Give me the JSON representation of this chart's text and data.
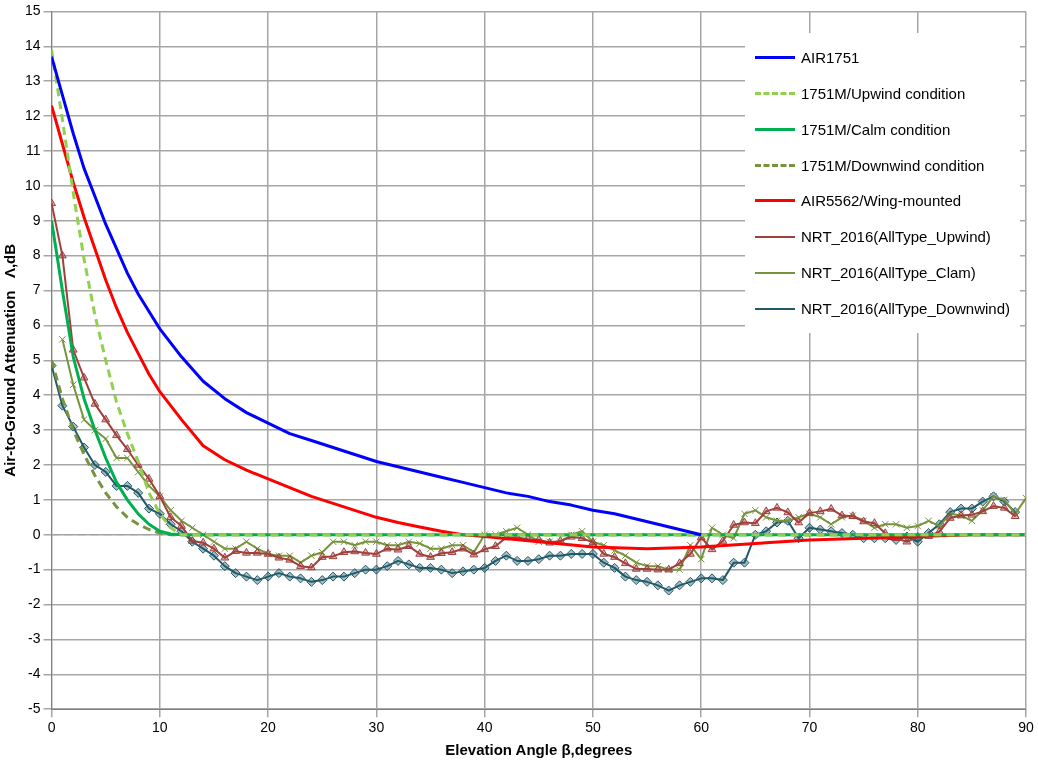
{
  "chart_data": {
    "type": "line",
    "xlabel": "Elevation Angle β,degrees",
    "ylabel": "Air-to-Ground Attenuation   Λ,dB",
    "x": [
      0,
      1,
      2,
      3,
      4,
      5,
      6,
      7,
      8,
      9,
      10,
      11,
      12,
      13,
      14,
      15,
      16,
      17,
      18,
      19,
      20,
      21,
      22,
      23,
      24,
      25,
      26,
      27,
      28,
      29,
      30,
      31,
      32,
      33,
      34,
      35,
      36,
      37,
      38,
      39,
      40,
      41,
      42,
      43,
      44,
      45,
      46,
      47,
      48,
      49,
      50,
      51,
      52,
      53,
      54,
      55,
      56,
      57,
      58,
      59,
      60,
      61,
      62,
      63,
      64,
      65,
      66,
      67,
      68,
      69,
      70,
      71,
      72,
      73,
      74,
      75,
      76,
      77,
      78,
      79,
      80,
      81,
      82,
      83,
      84,
      85,
      86,
      87,
      88,
      89,
      90
    ],
    "xlim": [
      0,
      90
    ],
    "xticks": [
      0,
      10,
      20,
      30,
      40,
      50,
      60,
      70,
      80,
      90
    ],
    "ylim": [
      -5,
      15
    ],
    "yticks": [
      -5,
      -4,
      -3,
      -2,
      -1,
      0,
      1,
      2,
      3,
      4,
      5,
      6,
      7,
      8,
      9,
      10,
      11,
      12,
      13,
      14,
      15
    ],
    "grid": true,
    "legend": "top right",
    "ref_lines": [
      {
        "axis": "y",
        "value": 0,
        "color": "#a0a0a0",
        "line_style": "dashed"
      }
    ],
    "series": [
      {
        "name": "AIR1751",
        "color": "#0000ff",
        "marker": "none",
        "line_style": "solid",
        "x": [
          0,
          1,
          2,
          3,
          4,
          5,
          6,
          7,
          8,
          9,
          10,
          12,
          14,
          16,
          18,
          20,
          22,
          24,
          26,
          28,
          30,
          32,
          34,
          36,
          38,
          40,
          42,
          44,
          46,
          48,
          50,
          52,
          54,
          56,
          58,
          60
        ],
        "values": [
          13.7,
          12.6,
          11.5,
          10.5,
          9.7,
          8.9,
          8.2,
          7.5,
          6.9,
          6.4,
          5.9,
          5.1,
          4.4,
          3.9,
          3.5,
          3.2,
          2.9,
          2.7,
          2.5,
          2.3,
          2.1,
          1.95,
          1.8,
          1.65,
          1.5,
          1.35,
          1.2,
          1.1,
          0.95,
          0.85,
          0.7,
          0.6,
          0.45,
          0.3,
          0.15,
          0
        ]
      },
      {
        "name": "1751M/Upwind condition",
        "color": "#92d050",
        "marker": "none",
        "line_style": "dashed",
        "x": [
          0,
          1,
          2,
          3,
          4,
          5,
          6,
          7,
          8,
          9,
          10,
          11,
          12,
          90
        ],
        "values": [
          13.9,
          11.9,
          9.8,
          7.9,
          6.3,
          5.0,
          3.8,
          2.9,
          2.1,
          1.2,
          0.6,
          0.2,
          0,
          0
        ]
      },
      {
        "name": "1751M/Calm condition",
        "color": "#00b050",
        "marker": "none",
        "line_style": "solid",
        "x": [
          0,
          1,
          2,
          3,
          4,
          5,
          6,
          7,
          8,
          9,
          10,
          11,
          12,
          90
        ],
        "values": [
          9.0,
          7.0,
          5.1,
          3.9,
          3.0,
          2.2,
          1.5,
          1.0,
          0.6,
          0.3,
          0.1,
          0.02,
          0,
          0
        ]
      },
      {
        "name": "1751M/Downwind condition",
        "color": "#77933c",
        "marker": "none",
        "line_style": "dashed",
        "x": [
          0,
          1,
          2,
          3,
          4,
          5,
          6,
          7,
          8,
          9,
          10,
          11,
          90
        ],
        "values": [
          5.0,
          3.9,
          3.0,
          2.3,
          1.7,
          1.2,
          0.8,
          0.5,
          0.3,
          0.15,
          0.05,
          0,
          0
        ]
      },
      {
        "name": "AIR5562/Wing-mounted",
        "color": "#ff0000",
        "marker": "none",
        "line_style": "solid",
        "x": [
          0,
          1,
          2,
          3,
          4,
          5,
          6,
          7,
          8,
          9,
          10,
          12,
          14,
          16,
          18,
          20,
          22,
          24,
          26,
          28,
          30,
          32,
          34,
          36,
          38,
          40,
          45,
          50,
          55,
          60,
          65,
          70,
          75,
          80,
          85,
          90
        ],
        "values": [
          12.3,
          11.2,
          10.1,
          9.1,
          8.2,
          7.3,
          6.5,
          5.8,
          5.2,
          4.6,
          4.1,
          3.3,
          2.55,
          2.15,
          1.85,
          1.6,
          1.35,
          1.1,
          0.9,
          0.7,
          0.5,
          0.35,
          0.22,
          0.1,
          0,
          -0.05,
          -0.2,
          -0.35,
          -0.4,
          -0.35,
          -0.25,
          -0.15,
          -0.1,
          -0.05,
          0,
          0
        ]
      },
      {
        "name": "NRT_2016(AllType_Upwind)",
        "color": "#a0403c",
        "marker": "triangle",
        "line_style": "solid",
        "values": [
          9.5,
          8.0,
          5.3,
          4.5,
          3.75,
          3.3,
          2.85,
          2.45,
          2.0,
          1.6,
          1.1,
          0.5,
          0.25,
          -0.18,
          -0.23,
          -0.4,
          -0.66,
          -0.47,
          -0.52,
          -0.52,
          -0.55,
          -0.66,
          -0.72,
          -0.9,
          -0.94,
          -0.64,
          -0.62,
          -0.5,
          -0.48,
          -0.52,
          -0.55,
          -0.4,
          -0.43,
          -0.33,
          -0.55,
          -0.64,
          -0.53,
          -0.5,
          -0.4,
          -0.57,
          -0.42,
          -0.33,
          -0.08,
          -0.08,
          -0.13,
          -0.14,
          -0.23,
          -0.18,
          -0.06,
          -0.1,
          -0.22,
          -0.55,
          -0.64,
          -0.82,
          -0.98,
          -0.98,
          -1.0,
          -1.0,
          -0.82,
          -0.55,
          -0.08,
          -0.42,
          -0.18,
          0.28,
          0.35,
          0.33,
          0.67,
          0.77,
          0.64,
          0.35,
          0.62,
          0.67,
          0.74,
          0.55,
          0.53,
          0.38,
          0.33,
          0.04,
          -0.1,
          -0.2,
          -0.06,
          -0.04,
          0.09,
          0.48,
          0.55,
          0.57,
          0.67,
          0.82,
          0.77,
          0.53,
          null
        ]
      },
      {
        "name": "NRT_2016(AllType_Clam)",
        "color": "#77933c",
        "marker": "cross",
        "line_style": "solid",
        "values": [
          null,
          5.6,
          4.3,
          3.3,
          3.0,
          2.75,
          2.2,
          2.2,
          1.8,
          1.4,
          1.1,
          0.7,
          0.4,
          0.2,
          0.0,
          -0.2,
          -0.4,
          -0.4,
          -0.2,
          -0.4,
          -0.55,
          -0.6,
          -0.6,
          -0.8,
          -0.6,
          -0.5,
          -0.2,
          -0.2,
          -0.3,
          -0.2,
          -0.2,
          -0.3,
          -0.3,
          -0.2,
          -0.25,
          -0.4,
          -0.4,
          -0.3,
          -0.3,
          -0.5,
          0.0,
          0.0,
          0.1,
          0.2,
          0.0,
          -0.2,
          -0.2,
          -0.2,
          0.0,
          0.1,
          -0.2,
          -0.3,
          -0.45,
          -0.6,
          -0.8,
          -0.9,
          -0.9,
          -1.0,
          -1.0,
          -0.3,
          -0.7,
          0.2,
          0.0,
          -0.1,
          0.6,
          0.7,
          0.5,
          0.4,
          0.4,
          0.5,
          0.6,
          0.5,
          0.3,
          0.5,
          0.55,
          0.4,
          0.2,
          0.3,
          0.3,
          0.2,
          0.25,
          0.4,
          0.25,
          0.6,
          0.55,
          0.4,
          0.7,
          1.1,
          1.0,
          0.6,
          1.05
        ]
      },
      {
        "name": "NRT_2016(AllType_Downwind)",
        "color": "#215968",
        "marker": "diamond",
        "line_style": "solid",
        "values": [
          4.85,
          3.7,
          3.1,
          2.5,
          2.0,
          1.8,
          1.4,
          1.4,
          1.2,
          0.75,
          0.6,
          0.3,
          0.1,
          -0.2,
          -0.4,
          -0.6,
          -0.9,
          -1.1,
          -1.2,
          -1.3,
          -1.2,
          -1.1,
          -1.2,
          -1.25,
          -1.35,
          -1.3,
          -1.2,
          -1.2,
          -1.1,
          -1.0,
          -1.0,
          -0.9,
          -0.75,
          -0.85,
          -0.95,
          -0.95,
          -1.0,
          -1.1,
          -1.05,
          -1.0,
          -0.95,
          -0.75,
          -0.6,
          -0.75,
          -0.75,
          -0.7,
          -0.6,
          -0.6,
          -0.55,
          -0.55,
          -0.55,
          -0.8,
          -0.95,
          -1.2,
          -1.3,
          -1.35,
          -1.45,
          -1.6,
          -1.45,
          -1.35,
          -1.25,
          -1.25,
          -1.3,
          -0.8,
          -0.8,
          0.0,
          0.1,
          0.35,
          0.4,
          -0.1,
          0.2,
          0.15,
          0.1,
          0.05,
          0.0,
          -0.1,
          -0.1,
          -0.1,
          -0.15,
          -0.05,
          -0.2,
          0.05,
          0.3,
          0.65,
          0.75,
          0.75,
          0.95,
          1.1,
          0.95,
          0.65,
          null
        ]
      }
    ]
  }
}
